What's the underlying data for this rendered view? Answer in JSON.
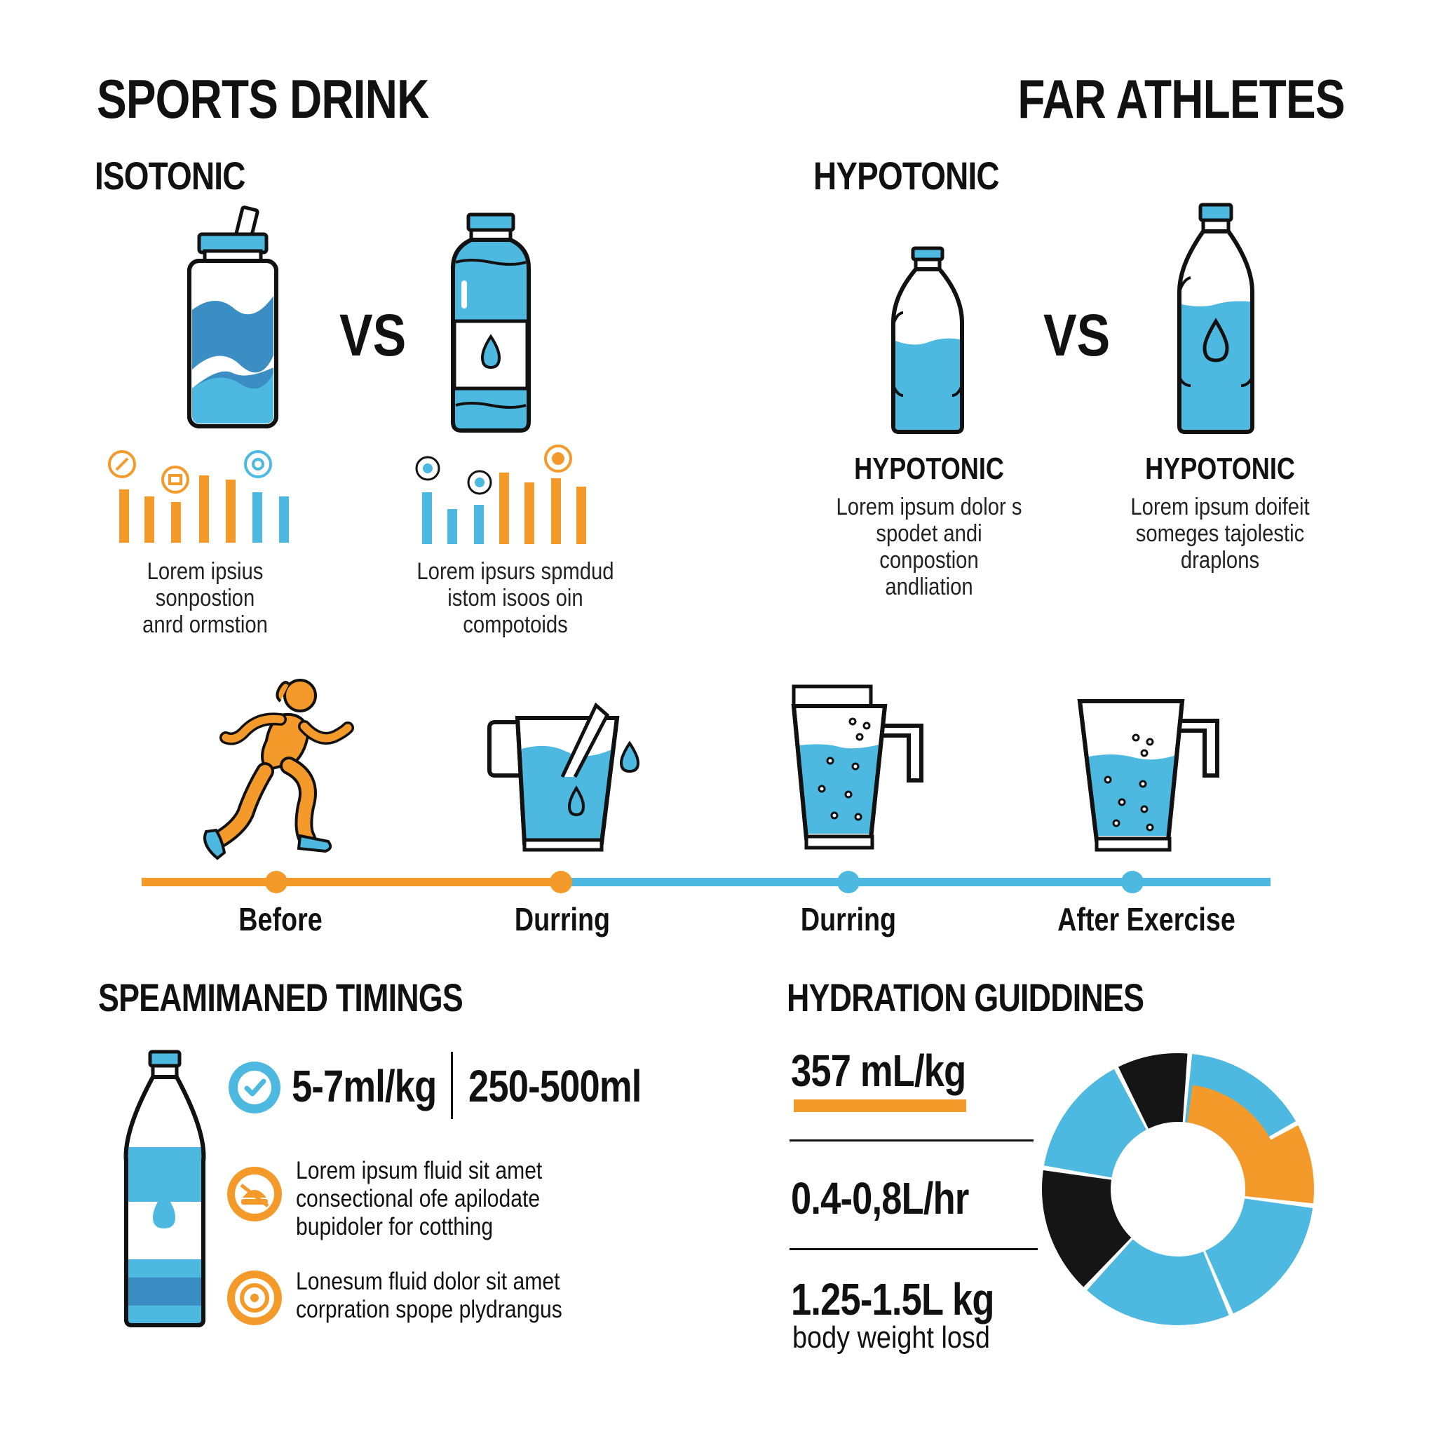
{
  "header": {
    "title_left": "SPORTS DRINK",
    "title_right": "FAR ATHLETES"
  },
  "isotonic": {
    "heading": "ISOTONIC",
    "vs": "VS",
    "caption_left": [
      "Lorem ipsius sonpostion",
      "anrd ormstion"
    ],
    "caption_right": [
      "Lorem ipsurs spmdud",
      "istom isoos oin compotoids"
    ]
  },
  "hypotonic": {
    "heading": "HYPOTONIC",
    "vs": "VS",
    "left_label": "HYPOTONIC",
    "left_caption": [
      "Lorem ipsum dolor s",
      "spodet andi conpostion",
      "andliation"
    ],
    "right_label": "HYPOTONIC",
    "right_caption": [
      "Lorem ipsum doifeit",
      "someges tajolestic",
      "draplons"
    ]
  },
  "timeline": {
    "stages": [
      "Before",
      "Durring",
      "Durring",
      "After Exercise"
    ]
  },
  "timings": {
    "heading": "SPEAMIMANED TIMINGS",
    "stat_a": "5-7ml/kg",
    "stat_b": "250-500ml",
    "tip_1": [
      "Lorem ipsum fluid sit amet",
      "consectional ofe apilodate",
      "bupidoler for cotthing"
    ],
    "tip_2": [
      "Lonesum fluid dolor sit amet",
      "corpration spope plydrangus"
    ]
  },
  "guidelines": {
    "heading": "HYDRATION GUIDDINES",
    "value_1": "357 mL/kg",
    "value_2": "0.4-0,8L/hr",
    "value_3": "1.25-1.5L kg",
    "value_3_note": "body weight losd"
  },
  "icons": {
    "sports-bottle": "sports-bottle-icon",
    "water-bottle": "water-bottle-icon",
    "runner": "runner-icon",
    "pitcher": "pitcher-icon",
    "check": "check-icon",
    "food": "food-icon",
    "target": "target-icon"
  },
  "colors": {
    "blue": "#4db8e0",
    "orange": "#f39a2b",
    "black": "#151515",
    "dark_blue": "#3a8ec4"
  }
}
